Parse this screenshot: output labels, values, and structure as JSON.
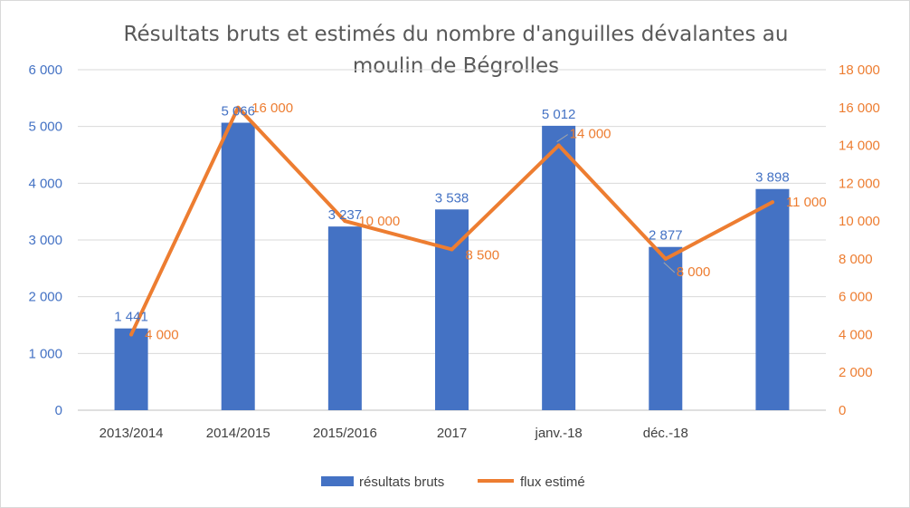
{
  "chart_data": {
    "type": "bar",
    "title_lines": [
      "Résultats bruts et estimés du nombre d'anguilles dévalantes au",
      "moulin de Bégrolles"
    ],
    "categories": [
      "2013/2014",
      "2014/2015",
      "2015/2016",
      "2017",
      "janv.-18",
      "déc.-18",
      ""
    ],
    "series": [
      {
        "name": "résultats bruts",
        "kind": "bar",
        "axis": "left",
        "color": "#4472c4",
        "values": [
          1441,
          5066,
          3237,
          3538,
          5012,
          2877,
          3898
        ],
        "labels": [
          "1 441",
          "5 066",
          "3 237",
          "3 538",
          "5 012",
          "2 877",
          "3 898"
        ]
      },
      {
        "name": "flux estimé",
        "kind": "line",
        "axis": "right",
        "color": "#ed7d31",
        "values": [
          4000,
          16000,
          10000,
          8500,
          14000,
          8000,
          11000
        ],
        "labels": [
          "4 000",
          "16 000",
          "10 000",
          "8 500",
          "14 000",
          "8 000",
          "11 000"
        ]
      }
    ],
    "y_left": {
      "range": [
        0,
        6000
      ],
      "ticks": [
        0,
        1000,
        2000,
        3000,
        4000,
        5000,
        6000
      ],
      "tick_labels": [
        "0",
        "1 000",
        "2 000",
        "3 000",
        "4 000",
        "5 000",
        "6 000"
      ]
    },
    "y_right": {
      "range": [
        0,
        18000
      ],
      "ticks": [
        0,
        2000,
        4000,
        6000,
        8000,
        10000,
        12000,
        14000,
        16000,
        18000
      ],
      "tick_labels": [
        "0",
        "2 000",
        "4 000",
        "6 000",
        "8 000",
        "10 000",
        "12 000",
        "14 000",
        "16 000",
        "18 000"
      ]
    },
    "grid": true,
    "legend_position": "bottom"
  }
}
